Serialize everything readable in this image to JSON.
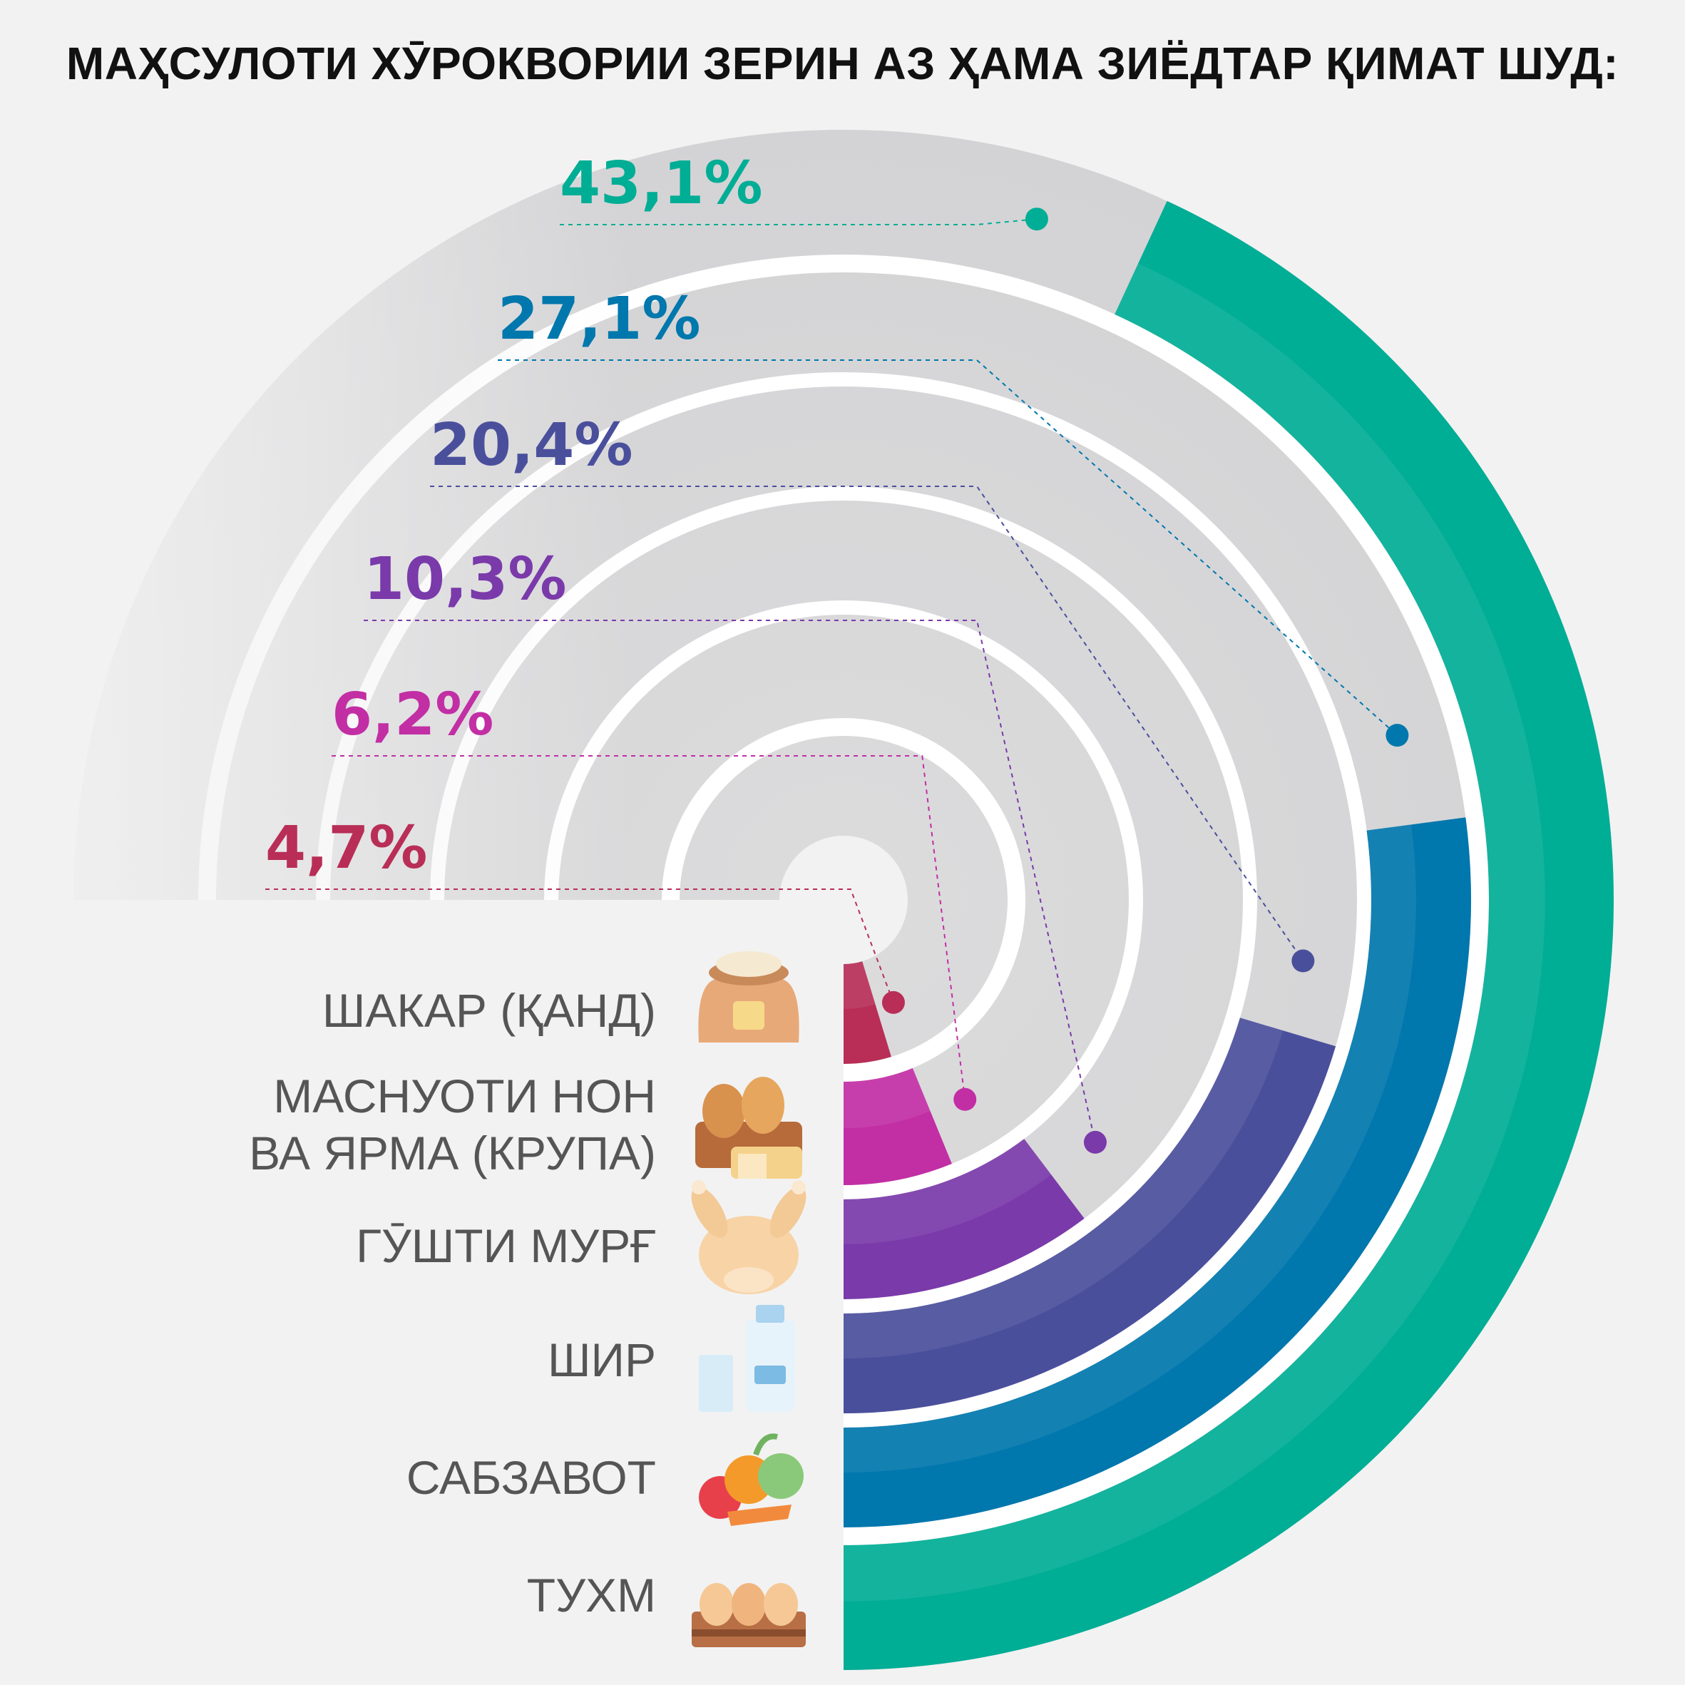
{
  "title": "МАҲСУЛОТИ ХӮРОКВОРИИ ЗЕРИН АЗ ҲАМА ЗИЁДТАР ҚИМАТ ШУД:",
  "chart_data": {
    "type": "radial-bar",
    "title": "МАҲСУЛОТИ ХӮРОКВОРИИ ЗЕРИН АЗ ҲАМА ЗИЁДТАР ҚИМАТ ШУД:",
    "unit": "%",
    "scale_max": 100,
    "categories": [
      {
        "label": "ШАКАР (ҚАНД)",
        "value": 4.7,
        "value_label": "4,7%",
        "color": "#b82e57",
        "icon": "sugar-sack-icon"
      },
      {
        "label": "МАСНУОТИ НОН ВА ЯРМА (КРУПА)",
        "value": 6.2,
        "value_label": "6,2%",
        "color": "#c22ea4",
        "icon": "bread-basket-icon"
      },
      {
        "label": "ГӮШТИ МУРҒ",
        "value": 10.3,
        "value_label": "10,3%",
        "color": "#7a3aaa",
        "icon": "chicken-icon"
      },
      {
        "label": "ШИР",
        "value": 20.4,
        "value_label": "20,4%",
        "color": "#4a4f9c",
        "icon": "milk-icon"
      },
      {
        "label": "САБЗАВОТ",
        "value": 27.1,
        "value_label": "27,1%",
        "color": "#0077ad",
        "icon": "vegetables-icon"
      },
      {
        "label": "ТУХМ",
        "value": 43.1,
        "value_label": "43,1%",
        "color": "#00ad95",
        "icon": "eggs-icon"
      }
    ]
  }
}
